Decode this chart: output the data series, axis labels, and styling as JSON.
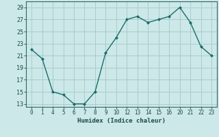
{
  "xlabel": "Humidex (Indice chaleur)",
  "background_color": "#cce8e8",
  "grid_color": "#aacccc",
  "line_color": "#1a6b6b",
  "x_labels": [
    "0",
    "1",
    "4",
    "5",
    "6",
    "7",
    "8",
    "9",
    "10",
    "12",
    "13",
    "14",
    "15",
    "16",
    "20",
    "21",
    "22",
    "23"
  ],
  "y_values": [
    22,
    20.5,
    15,
    14.5,
    13,
    13,
    15,
    21.5,
    24,
    27,
    27.5,
    26.5,
    27,
    27.5,
    29,
    26.5,
    22.5,
    21
  ],
  "yticks": [
    13,
    15,
    17,
    19,
    21,
    23,
    25,
    27,
    29
  ],
  "ylim": [
    12.5,
    30
  ],
  "xlabel_fontsize": 6.5,
  "tick_fontsize": 5.5
}
